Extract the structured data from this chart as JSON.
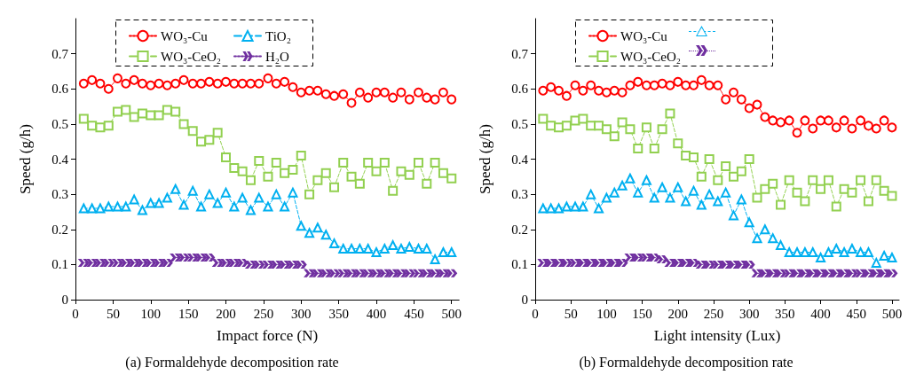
{
  "chart_data": [
    {
      "type": "line",
      "title": "(a) Formaldehyde decomposition rate",
      "xlabel": "Impact force (N)",
      "ylabel": "Speed (g/h)",
      "xlim": [
        0,
        510
      ],
      "ylim": [
        0,
        0.8
      ],
      "xticks": [
        0,
        50,
        100,
        150,
        200,
        250,
        300,
        350,
        400,
        450,
        500
      ],
      "yticks": [
        0,
        0.1,
        0.2,
        0.3,
        0.4,
        0.5,
        0.6,
        0.7
      ],
      "legend": "top left",
      "x": [
        11,
        22,
        33,
        44,
        56,
        67,
        78,
        89,
        100,
        111,
        122,
        133,
        144,
        156,
        167,
        178,
        189,
        200,
        211,
        222,
        233,
        244,
        256,
        267,
        278,
        289,
        300,
        311,
        322,
        333,
        344,
        356,
        367,
        378,
        389,
        400,
        411,
        422,
        433,
        444,
        456,
        467,
        478,
        489,
        500
      ],
      "series": [
        {
          "name": "WO₃-Cu",
          "color": "#ff0000",
          "marker": "circle",
          "line_style": "dotted",
          "values": [
            0.615,
            0.625,
            0.615,
            0.6,
            0.63,
            0.615,
            0.625,
            0.615,
            0.61,
            0.615,
            0.61,
            0.615,
            0.625,
            0.615,
            0.615,
            0.62,
            0.615,
            0.62,
            0.615,
            0.615,
            0.615,
            0.615,
            0.63,
            0.615,
            0.62,
            0.605,
            0.59,
            0.595,
            0.595,
            0.585,
            0.58,
            0.585,
            0.56,
            0.59,
            0.575,
            0.59,
            0.59,
            0.575,
            0.59,
            0.57,
            0.59,
            0.575,
            0.57,
            0.59,
            0.57
          ]
        },
        {
          "name": "WO₃-CeO₂",
          "color": "#92d050",
          "marker": "square",
          "line_style": "dashed",
          "values": [
            0.515,
            0.495,
            0.49,
            0.495,
            0.535,
            0.54,
            0.52,
            0.53,
            0.525,
            0.525,
            0.54,
            0.535,
            0.5,
            0.48,
            0.45,
            0.455,
            0.475,
            0.405,
            0.375,
            0.365,
            0.34,
            0.395,
            0.35,
            0.39,
            0.36,
            0.37,
            0.41,
            0.3,
            0.34,
            0.36,
            0.32,
            0.39,
            0.35,
            0.33,
            0.39,
            0.365,
            0.39,
            0.31,
            0.365,
            0.355,
            0.39,
            0.33,
            0.39,
            0.36,
            0.345
          ]
        },
        {
          "name": "TiO₂",
          "color": "#00b0f0",
          "marker": "triangle",
          "line_style": "dashed",
          "values": [
            0.26,
            0.26,
            0.26,
            0.265,
            0.265,
            0.265,
            0.285,
            0.255,
            0.275,
            0.275,
            0.29,
            0.315,
            0.27,
            0.31,
            0.265,
            0.3,
            0.275,
            0.305,
            0.265,
            0.29,
            0.255,
            0.29,
            0.265,
            0.3,
            0.265,
            0.305,
            0.21,
            0.19,
            0.205,
            0.185,
            0.16,
            0.145,
            0.145,
            0.145,
            0.145,
            0.135,
            0.145,
            0.155,
            0.145,
            0.15,
            0.145,
            0.145,
            0.115,
            0.135,
            0.135
          ]
        },
        {
          "name": "H₂O",
          "color": "#7030a0",
          "marker": "cross",
          "line_style": "dotted",
          "values": [
            0.105,
            0.105,
            0.105,
            0.105,
            0.105,
            0.105,
            0.105,
            0.105,
            0.105,
            0.105,
            0.105,
            0.12,
            0.12,
            0.12,
            0.12,
            0.12,
            0.105,
            0.105,
            0.105,
            0.105,
            0.1,
            0.1,
            0.1,
            0.1,
            0.1,
            0.1,
            0.1,
            0.075,
            0.075,
            0.075,
            0.075,
            0.075,
            0.075,
            0.075,
            0.075,
            0.075,
            0.075,
            0.075,
            0.075,
            0.075,
            0.075,
            0.075,
            0.075,
            0.075,
            0.075
          ]
        }
      ]
    },
    {
      "type": "line",
      "title": "(b) Formaldehyde decomposition rate",
      "xlabel": "Light intensity (Lux)",
      "ylabel": "Speed (g/h)",
      "xlim": [
        0,
        510
      ],
      "ylim": [
        0,
        0.8
      ],
      "xticks": [
        0,
        50,
        100,
        150,
        200,
        250,
        300,
        350,
        400,
        450,
        500
      ],
      "yticks": [
        0,
        0.1,
        0.2,
        0.3,
        0.4,
        0.5,
        0.6,
        0.7
      ],
      "legend": "top left",
      "x": [
        11,
        22,
        33,
        44,
        56,
        67,
        78,
        89,
        100,
        111,
        122,
        133,
        144,
        156,
        167,
        178,
        189,
        200,
        211,
        222,
        233,
        244,
        256,
        267,
        278,
        289,
        300,
        311,
        322,
        333,
        344,
        356,
        367,
        378,
        389,
        400,
        411,
        422,
        433,
        444,
        456,
        467,
        478,
        489,
        500
      ],
      "series": [
        {
          "name": "WO₃-Cu",
          "color": "#ff0000",
          "marker": "circle",
          "line_style": "dotted",
          "values": [
            0.595,
            0.605,
            0.595,
            0.58,
            0.61,
            0.595,
            0.61,
            0.595,
            0.59,
            0.595,
            0.59,
            0.61,
            0.62,
            0.61,
            0.61,
            0.615,
            0.61,
            0.62,
            0.61,
            0.61,
            0.625,
            0.61,
            0.61,
            0.57,
            0.59,
            0.57,
            0.545,
            0.555,
            0.52,
            0.51,
            0.505,
            0.51,
            0.475,
            0.51,
            0.487,
            0.51,
            0.51,
            0.49,
            0.51,
            0.487,
            0.51,
            0.495,
            0.487,
            0.51,
            0.49
          ]
        },
        {
          "name": "WO₃-CeO₂",
          "color": "#92d050",
          "marker": "square",
          "line_style": "dashed",
          "values": [
            0.515,
            0.495,
            0.49,
            0.495,
            0.51,
            0.515,
            0.495,
            0.495,
            0.485,
            0.465,
            0.505,
            0.485,
            0.43,
            0.49,
            0.43,
            0.485,
            0.53,
            0.445,
            0.41,
            0.405,
            0.35,
            0.4,
            0.34,
            0.38,
            0.35,
            0.365,
            0.4,
            0.29,
            0.315,
            0.33,
            0.27,
            0.34,
            0.305,
            0.28,
            0.34,
            0.315,
            0.34,
            0.265,
            0.315,
            0.305,
            0.34,
            0.28,
            0.34,
            0.31,
            0.295
          ]
        },
        {
          "color": "#00b0f0",
          "marker": "triangle",
          "line_style": "dashed",
          "values": [
            0.26,
            0.26,
            0.26,
            0.265,
            0.265,
            0.265,
            0.3,
            0.26,
            0.29,
            0.305,
            0.325,
            0.345,
            0.305,
            0.34,
            0.29,
            0.32,
            0.29,
            0.32,
            0.28,
            0.31,
            0.27,
            0.3,
            0.28,
            0.305,
            0.24,
            0.285,
            0.22,
            0.175,
            0.2,
            0.175,
            0.155,
            0.135,
            0.135,
            0.135,
            0.135,
            0.12,
            0.135,
            0.145,
            0.135,
            0.145,
            0.135,
            0.135,
            0.105,
            0.125,
            0.12
          ]
        },
        {
          "color": "#7030a0",
          "marker": "cross",
          "line_style": "dotted",
          "values": [
            0.105,
            0.105,
            0.105,
            0.105,
            0.105,
            0.105,
            0.105,
            0.105,
            0.105,
            0.105,
            0.105,
            0.12,
            0.12,
            0.12,
            0.12,
            0.115,
            0.105,
            0.105,
            0.105,
            0.105,
            0.1,
            0.1,
            0.1,
            0.1,
            0.1,
            0.1,
            0.1,
            0.075,
            0.075,
            0.075,
            0.075,
            0.075,
            0.075,
            0.075,
            0.075,
            0.075,
            0.075,
            0.075,
            0.075,
            0.075,
            0.075,
            0.075,
            0.075,
            0.075,
            0.075
          ]
        }
      ]
    }
  ]
}
